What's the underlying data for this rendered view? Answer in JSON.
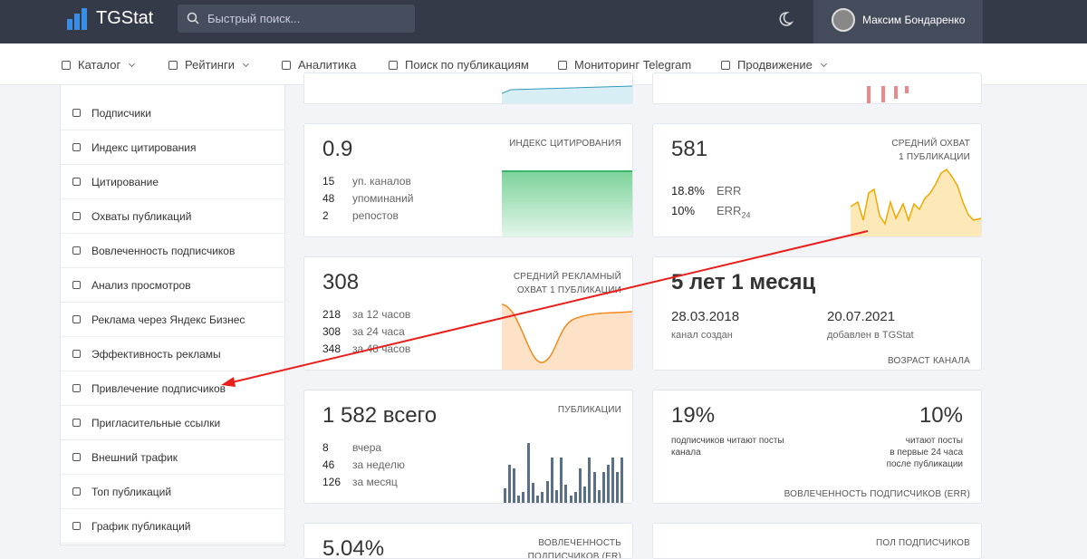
{
  "header": {
    "logo": "TGStat",
    "search_placeholder": "Быстрый поиск...",
    "user_name": "Максим Бондаренко"
  },
  "nav": [
    "Каталог",
    "Рейтинги",
    "Аналитика",
    "Поиск по публикациям",
    "Мониторинг Telegram",
    "Продвижение"
  ],
  "sidebar": [
    "Подписчики",
    "Индекс цитирования",
    "Цитирование",
    "Охваты публикаций",
    "Вовлеченность подписчиков",
    "Анализ просмотров",
    "Реклама через Яндекс Бизнес",
    "Эффективность рекламы",
    "Привлечение подписчиков",
    "Пригласительные ссылки",
    "Внешний трафик",
    "Топ публикаций",
    "График публикаций"
  ],
  "cards": {
    "citation": {
      "value": "0.9",
      "label": [
        "ИНДЕКС ЦИТИРОВАНИЯ"
      ],
      "stats": [
        {
          "num": "15",
          "text": "уп. каналов"
        },
        {
          "num": "48",
          "text": "упоминаний"
        },
        {
          "num": "2",
          "text": "репостов"
        }
      ]
    },
    "reach": {
      "value": "581",
      "label": [
        "СРЕДНИЙ ОХВАТ",
        "1 ПУБЛИКАЦИИ"
      ],
      "err": {
        "num": "18.8%",
        "text": "ERR"
      },
      "err24": {
        "num": "10%",
        "text": "ERR",
        "sub": "24"
      }
    },
    "ad_reach": {
      "value": "308",
      "label": [
        "СРЕДНИЙ РЕКЛАМНЫЙ",
        "ОХВАТ 1 ПУБЛИКАЦИИ"
      ],
      "stats": [
        {
          "num": "218",
          "text": "за 12 часов"
        },
        {
          "num": "308",
          "text": "за 24 часа"
        },
        {
          "num": "348",
          "text": "за 48 часов"
        }
      ]
    },
    "age": {
      "value": "5 лет 1 месяц",
      "created": {
        "date": "28.03.2018",
        "text": "канал создан"
      },
      "added": {
        "date": "20.07.2021",
        "text": "добавлен в TGStat"
      },
      "footer": "ВОЗРАСТ КАНАЛА"
    },
    "posts": {
      "value": "1 582 всего",
      "label": [
        "ПУБЛИКАЦИИ"
      ],
      "stats": [
        {
          "num": "8",
          "text": "вчера"
        },
        {
          "num": "46",
          "text": "за неделю"
        },
        {
          "num": "126",
          "text": "за месяц"
        }
      ]
    },
    "engagement": {
      "left": {
        "value": "19%",
        "text": "подписчиков читают посты канала"
      },
      "right": {
        "value": "10%",
        "lines": [
          "читают посты",
          "в первые 24 часа",
          "после публикации"
        ]
      },
      "footer": "ВОВЛЕЧЕННОСТЬ ПОДПИСЧИКОВ (ERR)"
    },
    "er": {
      "value": "5.04%",
      "label": [
        "ВОВЛЕЧЕННОСТЬ",
        "ПОДПИСЧИКОВ (ER)"
      ]
    },
    "gender": {
      "label": [
        "ПОЛ ПОДПИСЧИКОВ"
      ]
    }
  }
}
